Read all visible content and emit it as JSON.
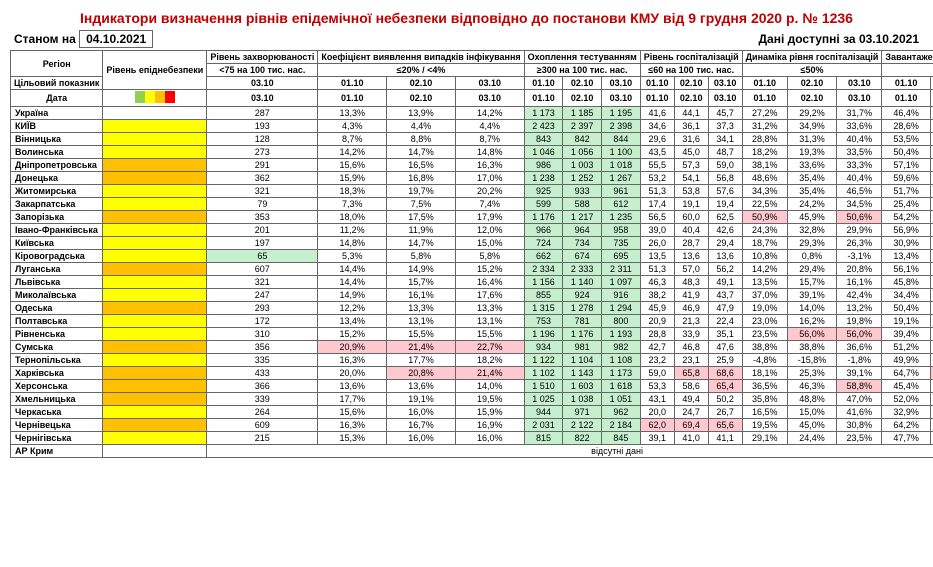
{
  "title": "Індикатори визначення рівнів епідемічної небезпеки відповідно до постанови КМУ від 9 грудня 2020 р. № 1236",
  "asof_label": "Станом на",
  "asof_date": "04.10.2021",
  "avail_label": "Дані доступні за",
  "avail_date": "03.10.2021",
  "col_headers": {
    "region": "Регіон",
    "target": "Цільовий показник",
    "date": "Дата",
    "level": "Рівень епіднебезпеки",
    "morbidity": "Рівень захворюваності",
    "morbidity_t": "<75 на 100 тис. нас.",
    "detect": "Коефіцієнт виявлення випадків інфікування",
    "detect_t": "≤20% / <4%",
    "testing": "Охоплення тестуванням",
    "testing_t": "≥300 на 100 тис. нас.",
    "hosp": "Рівень госпіталізацій",
    "hosp_t": "≤60 на 100 тис. нас.",
    "dyn": "Динаміка рівня госпіталізацій",
    "dyn_t": "≤50%",
    "oxy": "Завантаженість ліжок з киснем",
    "oxy_t": "≤65%"
  },
  "date_cols": {
    "d1": "01.10",
    "d2": "02.10",
    "d3": "03.10"
  },
  "absent_text": "відсутні дані",
  "rows": [
    {
      "region": "Україна",
      "lvl": "",
      "morb": "287",
      "det": [
        "13,3%",
        "13,9%",
        "14,2%"
      ],
      "test": [
        "1 173",
        "1 185",
        "1 195"
      ],
      "tc": "g",
      "hosp": [
        "41,6",
        "44,1",
        "45,7"
      ],
      "dyn": [
        "27,2%",
        "29,2%",
        "31,7%"
      ],
      "dc": [
        "",
        "",
        ""
      ],
      "oxy": [
        "46,4%",
        "48,0%",
        "49,6%"
      ],
      "oc": [
        "",
        "",
        ""
      ]
    },
    {
      "region": "КИЇВ",
      "lvl": "y",
      "morb": "193",
      "det": [
        "4,3%",
        "4,4%",
        "4,4%"
      ],
      "test": [
        "2 423",
        "2 397",
        "2 398"
      ],
      "tc": "g",
      "hosp": [
        "34,6",
        "36,1",
        "37,3"
      ],
      "dyn": [
        "31,2%",
        "34,9%",
        "33,6%"
      ],
      "dc": [
        "",
        "",
        ""
      ],
      "oxy": [
        "28,6%",
        "28,8%",
        "30,8%"
      ],
      "oc": [
        "",
        "",
        ""
      ]
    },
    {
      "region": "Вінницька",
      "lvl": "y",
      "morb": "128",
      "det": [
        "8,7%",
        "8,8%",
        "8,7%"
      ],
      "test": [
        "843",
        "842",
        "844"
      ],
      "tc": "g",
      "hosp": [
        "29,6",
        "31,6",
        "34,1"
      ],
      "dyn": [
        "28,8%",
        "31,3%",
        "40,4%"
      ],
      "dc": [
        "",
        "",
        ""
      ],
      "oxy": [
        "53,5%",
        "48,6%",
        "52,2%"
      ],
      "oc": [
        "",
        "",
        ""
      ]
    },
    {
      "region": "Волинська",
      "lvl": "y",
      "morb": "273",
      "det": [
        "14,2%",
        "14,7%",
        "14,8%"
      ],
      "test": [
        "1 046",
        "1 056",
        "1 100"
      ],
      "tc": "g",
      "hosp": [
        "43,5",
        "45,0",
        "48,7"
      ],
      "dyn": [
        "18,2%",
        "19,3%",
        "33,5%"
      ],
      "dc": [
        "",
        "",
        ""
      ],
      "oxy": [
        "50,4%",
        "51,7%",
        "64,6%"
      ],
      "oc": [
        "",
        "",
        ""
      ]
    },
    {
      "region": "Дніпропетровська",
      "lvl": "o",
      "morb": "291",
      "det": [
        "15,6%",
        "16,5%",
        "16,3%"
      ],
      "test": [
        "986",
        "1 003",
        "1 018"
      ],
      "tc": "g",
      "hosp": [
        "55,5",
        "57,3",
        "59,0"
      ],
      "dyn": [
        "38,1%",
        "33,6%",
        "33,3%"
      ],
      "dc": [
        "",
        "",
        ""
      ],
      "oxy": [
        "57,1%",
        "59,8%",
        "61,0%"
      ],
      "oc": [
        "",
        "",
        ""
      ]
    },
    {
      "region": "Донецька",
      "lvl": "o",
      "morb": "362",
      "det": [
        "15,9%",
        "16,8%",
        "17,0%"
      ],
      "test": [
        "1 238",
        "1 252",
        "1 267"
      ],
      "tc": "g",
      "hosp": [
        "53,2",
        "54,1",
        "56,8"
      ],
      "dyn": [
        "48,6%",
        "35,4%",
        "40,4%"
      ],
      "dc": [
        "",
        "",
        ""
      ],
      "oxy": [
        "59,6%",
        "61,4%",
        "63,4%"
      ],
      "oc": [
        "",
        "",
        ""
      ]
    },
    {
      "region": "Житомирська",
      "lvl": "y",
      "morb": "321",
      "det": [
        "18,3%",
        "19,7%",
        "20,2%"
      ],
      "test": [
        "925",
        "933",
        "961"
      ],
      "tc": "g",
      "hosp": [
        "51,3",
        "53,8",
        "57,6"
      ],
      "dyn": [
        "34,3%",
        "35,4%",
        "46,5%"
      ],
      "dc": [
        "",
        "",
        ""
      ],
      "oxy": [
        "51,7%",
        "54,5%",
        "58,4%"
      ],
      "oc": [
        "",
        "",
        ""
      ]
    },
    {
      "region": "Закарпатська",
      "lvl": "y",
      "morb": "79",
      "det": [
        "7,3%",
        "7,5%",
        "7,4%"
      ],
      "test": [
        "599",
        "588",
        "612"
      ],
      "tc": "g",
      "hosp": [
        "17,4",
        "19,1",
        "19,4"
      ],
      "dyn": [
        "22,5%",
        "24,2%",
        "34,5%"
      ],
      "dc": [
        "",
        "",
        ""
      ],
      "oxy": [
        "25,4%",
        "23,7%",
        "25,3%"
      ],
      "oc": [
        "",
        "",
        ""
      ]
    },
    {
      "region": "Запорізька",
      "lvl": "o",
      "morb": "353",
      "det": [
        "18,0%",
        "17,5%",
        "17,9%"
      ],
      "test": [
        "1 176",
        "1 217",
        "1 235"
      ],
      "tc": "g",
      "hosp": [
        "56,5",
        "60,0",
        "62,5"
      ],
      "dyn": [
        "50,9%",
        "45,9%",
        "50,6%"
      ],
      "dc": [
        "r",
        "",
        "r"
      ],
      "oxy": [
        "54,2%",
        "61,4%",
        "62,1%"
      ],
      "oc": [
        "",
        "",
        ""
      ]
    },
    {
      "region": "Івано-Франківська",
      "lvl": "y",
      "morb": "201",
      "det": [
        "11,2%",
        "11,9%",
        "12,0%"
      ],
      "test": [
        "966",
        "964",
        "958"
      ],
      "tc": "g",
      "hosp": [
        "39,0",
        "40,4",
        "42,6"
      ],
      "dyn": [
        "24,3%",
        "32,8%",
        "29,9%"
      ],
      "dc": [
        "",
        "",
        ""
      ],
      "oxy": [
        "56,9%",
        "55,5%",
        "56,7%"
      ],
      "oc": [
        "",
        "",
        ""
      ]
    },
    {
      "region": "Київська",
      "lvl": "y",
      "morb": "197",
      "det": [
        "14,8%",
        "14,7%",
        "15,0%"
      ],
      "test": [
        "724",
        "734",
        "735"
      ],
      "tc": "g",
      "hosp": [
        "26,0",
        "28,7",
        "29,4"
      ],
      "dyn": [
        "18,7%",
        "29,3%",
        "26,3%"
      ],
      "dc": [
        "",
        "",
        ""
      ],
      "oxy": [
        "30,9%",
        "34,2%",
        "35,4%"
      ],
      "oc": [
        "",
        "",
        ""
      ]
    },
    {
      "region": "Кіровоградська",
      "lvl": "y",
      "morb": "65",
      "mc": "g",
      "det": [
        "5,3%",
        "5,8%",
        "5,8%"
      ],
      "test": [
        "662",
        "674",
        "695"
      ],
      "tc": "g",
      "hosp": [
        "13,5",
        "13,6",
        "13,6"
      ],
      "dyn": [
        "10,8%",
        "0,8%",
        "-3,1%"
      ],
      "dc": [
        "",
        "",
        ""
      ],
      "oxy": [
        "13,4%",
        "15,1%",
        "16,9%"
      ],
      "oc": [
        "",
        "",
        ""
      ]
    },
    {
      "region": "Луганська",
      "lvl": "o",
      "morb": "607",
      "det": [
        "14,4%",
        "14,9%",
        "15,2%"
      ],
      "test": [
        "2 334",
        "2 333",
        "2 311"
      ],
      "tc": "g",
      "hosp": [
        "51,3",
        "57,0",
        "56,2"
      ],
      "dyn": [
        "14,2%",
        "29,4%",
        "20,8%"
      ],
      "dc": [
        "",
        "",
        ""
      ],
      "oxy": [
        "56,1%",
        "57,7%",
        "57,6%"
      ],
      "oc": [
        "",
        "",
        ""
      ]
    },
    {
      "region": "Львівська",
      "lvl": "y",
      "morb": "321",
      "det": [
        "14,4%",
        "15,7%",
        "16,4%"
      ],
      "test": [
        "1 156",
        "1 140",
        "1 097"
      ],
      "tc": "g",
      "hosp": [
        "46,3",
        "48,3",
        "49,1"
      ],
      "dyn": [
        "13,5%",
        "15,7%",
        "16,1%"
      ],
      "dc": [
        "",
        "",
        ""
      ],
      "oxy": [
        "45,8%",
        "47,5%",
        "50,3%"
      ],
      "oc": [
        "",
        "",
        ""
      ]
    },
    {
      "region": "Миколаївська",
      "lvl": "y",
      "morb": "247",
      "det": [
        "14,9%",
        "16,1%",
        "17,6%"
      ],
      "test": [
        "855",
        "924",
        "916"
      ],
      "tc": "g",
      "hosp": [
        "38,2",
        "41,9",
        "43,7"
      ],
      "dyn": [
        "37,0%",
        "39,1%",
        "42,4%"
      ],
      "dc": [
        "",
        "",
        ""
      ],
      "oxy": [
        "34,4%",
        "36,5%",
        "38,5%"
      ],
      "oc": [
        "",
        "",
        ""
      ]
    },
    {
      "region": "Одеська",
      "lvl": "o",
      "morb": "293",
      "det": [
        "12,2%",
        "13,3%",
        "13,3%"
      ],
      "test": [
        "1 315",
        "1 278",
        "1 294"
      ],
      "tc": "g",
      "hosp": [
        "45,9",
        "46,9",
        "47,9"
      ],
      "dyn": [
        "19,0%",
        "14,0%",
        "13,2%"
      ],
      "dc": [
        "",
        "",
        ""
      ],
      "oxy": [
        "50,4%",
        "49,1%",
        "53,3%"
      ],
      "oc": [
        "",
        "",
        ""
      ]
    },
    {
      "region": "Полтавська",
      "lvl": "y",
      "morb": "172",
      "det": [
        "13,4%",
        "13,1%",
        "13,1%"
      ],
      "test": [
        "753",
        "781",
        "800"
      ],
      "tc": "g",
      "hosp": [
        "20,9",
        "21,3",
        "22,4"
      ],
      "dyn": [
        "23,0%",
        "16,2%",
        "19,8%"
      ],
      "dc": [
        "",
        "",
        ""
      ],
      "oxy": [
        "19,1%",
        "20,4%",
        "22,8%"
      ],
      "oc": [
        "",
        "",
        ""
      ]
    },
    {
      "region": "Рівненська",
      "lvl": "y",
      "morb": "310",
      "det": [
        "15,2%",
        "15,5%",
        "15,5%"
      ],
      "test": [
        "1 196",
        "1 176",
        "1 193"
      ],
      "tc": "g",
      "hosp": [
        "28,8",
        "33,9",
        "35,1"
      ],
      "dyn": [
        "23,5%",
        "56,0%",
        "56,0%"
      ],
      "dc": [
        "",
        "r",
        "r"
      ],
      "oxy": [
        "39,4%",
        "42,7%",
        "44,3%"
      ],
      "oc": [
        "",
        "",
        ""
      ]
    },
    {
      "region": "Сумська",
      "lvl": "o",
      "morb": "356",
      "det": [
        "20,9%",
        "21,4%",
        "22,7%"
      ],
      "dtc": [
        "r",
        "r",
        "r"
      ],
      "test": [
        "934",
        "981",
        "982"
      ],
      "tc": "g",
      "hosp": [
        "42,7",
        "46,8",
        "47,6"
      ],
      "dyn": [
        "38,8%",
        "38,8%",
        "36,6%"
      ],
      "dc": [
        "",
        "",
        ""
      ],
      "oxy": [
        "51,2%",
        "52,7%",
        "55,1%"
      ],
      "oc": [
        "",
        "",
        ""
      ]
    },
    {
      "region": "Тернопільська",
      "lvl": "y",
      "morb": "335",
      "det": [
        "16,3%",
        "17,7%",
        "18,2%"
      ],
      "test": [
        "1 122",
        "1 104",
        "1 108"
      ],
      "tc": "g",
      "hosp": [
        "23,2",
        "23,1",
        "25,9"
      ],
      "dyn": [
        "-4,8%",
        "-15,8%",
        "-1,8%"
      ],
      "dc": [
        "",
        "",
        ""
      ],
      "oxy": [
        "49,9%",
        "49,3%",
        "49,9%"
      ],
      "oc": [
        "",
        "",
        ""
      ]
    },
    {
      "region": "Харківська",
      "lvl": "o",
      "morb": "433",
      "det": [
        "20,0%",
        "20,8%",
        "21,4%"
      ],
      "dtc": [
        "",
        "r",
        "r"
      ],
      "test": [
        "1 102",
        "1 143",
        "1 173"
      ],
      "tc": "g",
      "hosp": [
        "59,0",
        "65,8",
        "68,6"
      ],
      "hc": [
        "",
        "r",
        "r"
      ],
      "dyn": [
        "18,1%",
        "25,3%",
        "39,1%"
      ],
      "dc": [
        "",
        "",
        ""
      ],
      "oxy": [
        "64,7%",
        "70,1%",
        "66,4%"
      ],
      "oc": [
        "",
        "r",
        "r"
      ]
    },
    {
      "region": "Херсонська",
      "lvl": "o",
      "morb": "366",
      "det": [
        "13,6%",
        "13,6%",
        "14,0%"
      ],
      "test": [
        "1 510",
        "1 603",
        "1 618"
      ],
      "tc": "g",
      "hosp": [
        "53,3",
        "58,6",
        "65,4"
      ],
      "hc": [
        "",
        "",
        "r"
      ],
      "dyn": [
        "36,5%",
        "46,3%",
        "58,8%"
      ],
      "dc": [
        "",
        "",
        "r"
      ],
      "oxy": [
        "45,4%",
        "47,0%",
        "49,1%"
      ],
      "oc": [
        "",
        "",
        ""
      ]
    },
    {
      "region": "Хмельницька",
      "lvl": "o",
      "morb": "339",
      "det": [
        "17,7%",
        "19,1%",
        "19,5%"
      ],
      "test": [
        "1 025",
        "1 038",
        "1 051"
      ],
      "tc": "g",
      "hosp": [
        "43,1",
        "49,4",
        "50,2"
      ],
      "dyn": [
        "35,8%",
        "48,8%",
        "47,0%"
      ],
      "dc": [
        "",
        "",
        ""
      ],
      "oxy": [
        "52,0%",
        "61,0%",
        "63,0%"
      ],
      "oc": [
        "",
        "",
        ""
      ]
    },
    {
      "region": "Черкаська",
      "lvl": "y",
      "morb": "264",
      "det": [
        "15,6%",
        "16,0%",
        "15,9%"
      ],
      "test": [
        "944",
        "971",
        "962"
      ],
      "tc": "g",
      "hosp": [
        "20,0",
        "24,7",
        "26,7"
      ],
      "dyn": [
        "16,5%",
        "15,0%",
        "41,6%"
      ],
      "dc": [
        "",
        "",
        ""
      ],
      "oxy": [
        "32,9%",
        "32,2%",
        "30,2%"
      ],
      "oc": [
        "",
        "",
        ""
      ]
    },
    {
      "region": "Чернівецька",
      "lvl": "o",
      "morb": "609",
      "det": [
        "16,3%",
        "16,7%",
        "16,9%"
      ],
      "test": [
        "2 031",
        "2 122",
        "2 184"
      ],
      "tc": "g",
      "hosp": [
        "62,0",
        "69,4",
        "65,6"
      ],
      "hc": [
        "r",
        "r",
        "r"
      ],
      "dyn": [
        "19,5%",
        "45,0%",
        "30,8%"
      ],
      "dc": [
        "",
        "",
        ""
      ],
      "oxy": [
        "64,2%",
        "62,3%",
        "58,1%"
      ],
      "oc": [
        "",
        "",
        ""
      ]
    },
    {
      "region": "Чернігівська",
      "lvl": "y",
      "morb": "215",
      "det": [
        "15,3%",
        "16,0%",
        "16,0%"
      ],
      "test": [
        "815",
        "822",
        "845"
      ],
      "tc": "g",
      "hosp": [
        "39,1",
        "41,0",
        "41,1"
      ],
      "dyn": [
        "29,1%",
        "24,4%",
        "23,5%"
      ],
      "dc": [
        "",
        "",
        ""
      ],
      "oxy": [
        "47,7%",
        "47,5%",
        "47,9%"
      ],
      "oc": [
        "",
        "",
        ""
      ]
    }
  ],
  "ar_crimea": "АР Крим"
}
